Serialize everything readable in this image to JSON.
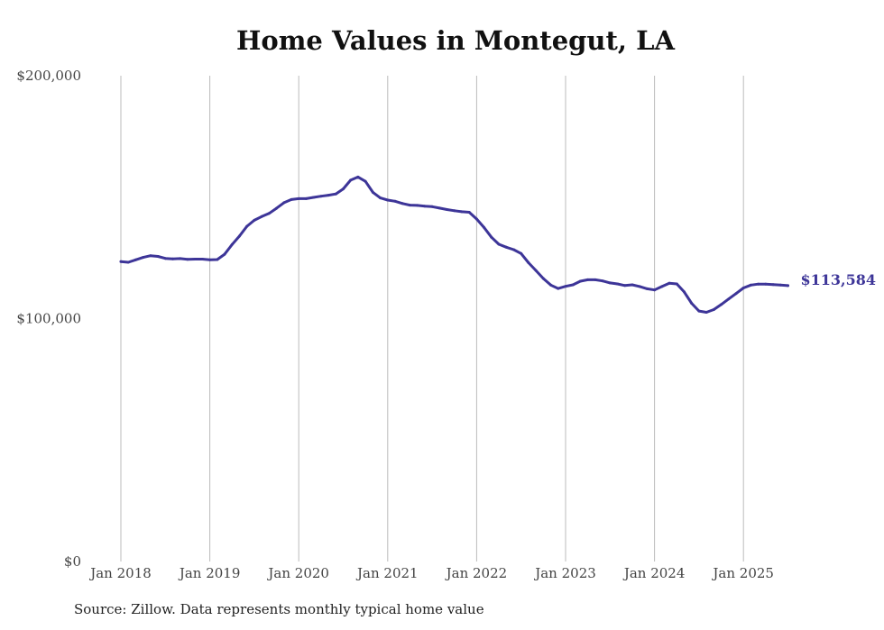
{
  "colors": {
    "line": "#3d3598",
    "grid": "#bbbbbb",
    "text": "#444444"
  },
  "chart_data": {
    "type": "line",
    "title": "Home Values in Montegut, LA",
    "xlabel": "",
    "ylabel": "",
    "ylim": [
      0,
      200000
    ],
    "xlim": [
      "2018-01",
      "2025-07"
    ],
    "yticks": [
      {
        "value": 0,
        "label": "$0"
      },
      {
        "value": 100000,
        "label": "$100,000"
      },
      {
        "value": 200000,
        "label": "$200,000"
      }
    ],
    "xticks": [
      {
        "year": 2018,
        "label": "Jan 2018"
      },
      {
        "year": 2019,
        "label": "Jan 2019"
      },
      {
        "year": 2020,
        "label": "Jan 2020"
      },
      {
        "year": 2021,
        "label": "Jan 2021"
      },
      {
        "year": 2022,
        "label": "Jan 2022"
      },
      {
        "year": 2023,
        "label": "Jan 2023"
      },
      {
        "year": 2024,
        "label": "Jan 2024"
      },
      {
        "year": 2025,
        "label": "Jan 2025"
      }
    ],
    "grid": "vertical",
    "legend": "none",
    "end_label": "$113,584",
    "series": [
      {
        "x": [
          "2018-01",
          "2018-02",
          "2018-03",
          "2018-04",
          "2018-05",
          "2018-06",
          "2018-07",
          "2018-08",
          "2018-09",
          "2018-10",
          "2018-11",
          "2018-12",
          "2019-01",
          "2019-02",
          "2019-03",
          "2019-04",
          "2019-05",
          "2019-06",
          "2019-07",
          "2019-08",
          "2019-09",
          "2019-10",
          "2019-11",
          "2019-12",
          "2020-01",
          "2020-02",
          "2020-03",
          "2020-04",
          "2020-05",
          "2020-06",
          "2020-07",
          "2020-08",
          "2020-09",
          "2020-10",
          "2020-11",
          "2020-12",
          "2021-01",
          "2021-02",
          "2021-03",
          "2021-04",
          "2021-05",
          "2021-06",
          "2021-07",
          "2021-08",
          "2021-09",
          "2021-10",
          "2021-11",
          "2021-12",
          "2022-01",
          "2022-02",
          "2022-03",
          "2022-04",
          "2022-05",
          "2022-06",
          "2022-07",
          "2022-08",
          "2022-09",
          "2022-10",
          "2022-11",
          "2022-12",
          "2023-01",
          "2023-02",
          "2023-03",
          "2023-04",
          "2023-05",
          "2023-06",
          "2023-07",
          "2023-08",
          "2023-09",
          "2023-10",
          "2023-11",
          "2023-12",
          "2024-01",
          "2024-02",
          "2024-03",
          "2024-04",
          "2024-05",
          "2024-06",
          "2024-07",
          "2024-08",
          "2024-09",
          "2024-10",
          "2024-11",
          "2024-12",
          "2025-01",
          "2025-02",
          "2025-03",
          "2025-04",
          "2025-05",
          "2025-06",
          "2025-07"
        ],
        "values": [
          123500,
          123200,
          124200,
          125200,
          125900,
          125600,
          124800,
          124600,
          124700,
          124400,
          124500,
          124500,
          124200,
          124300,
          126500,
          130500,
          134000,
          138000,
          140500,
          142000,
          143300,
          145400,
          147700,
          149000,
          149400,
          149400,
          149900,
          150400,
          150800,
          151300,
          153400,
          157000,
          158300,
          156500,
          152000,
          149700,
          148800,
          148300,
          147400,
          146700,
          146600,
          146300,
          146100,
          145500,
          144900,
          144400,
          144000,
          143800,
          141000,
          137500,
          133500,
          130600,
          129400,
          128400,
          126800,
          123000,
          119800,
          116500,
          113800,
          112400,
          113300,
          113900,
          115400,
          116000,
          116000,
          115500,
          114700,
          114300,
          113600,
          113900,
          113200,
          112300,
          111800,
          113200,
          114600,
          114300,
          111000,
          106300,
          103100,
          102600,
          103700,
          105800,
          108100,
          110300,
          112600,
          113800,
          114200,
          114200,
          114000,
          113800,
          113584
        ]
      }
    ]
  },
  "source": "Source: Zillow. Data represents monthly typical home value"
}
